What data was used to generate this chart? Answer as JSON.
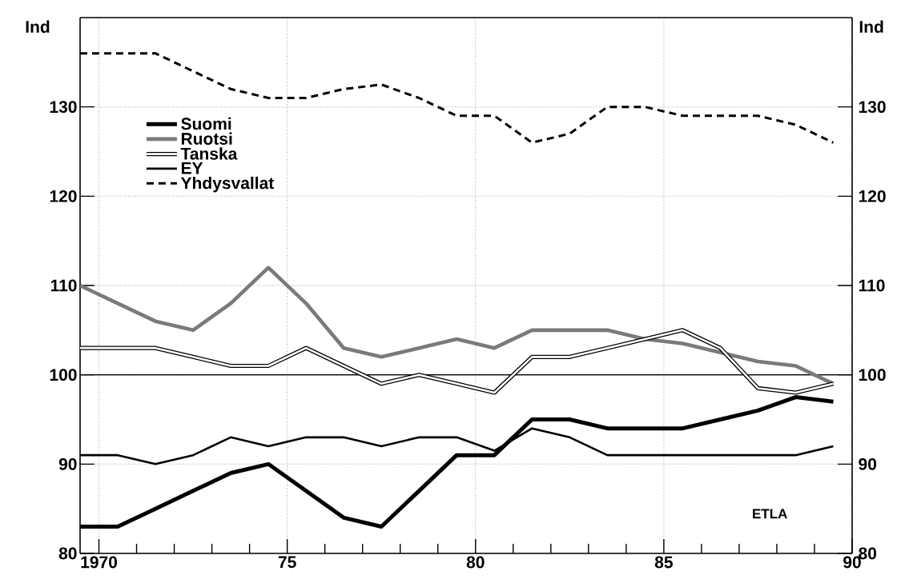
{
  "chart_data": {
    "type": "line",
    "xlabel": null,
    "ylabel": "Ind",
    "y2label": "Ind",
    "x": [
      1969.5,
      1970.5,
      1971.5,
      1972.5,
      1973.5,
      1974.5,
      1975.5,
      1976.5,
      1977.5,
      1978.5,
      1979.5,
      1980.5,
      1981.5,
      1982.5,
      1983.5,
      1984.5,
      1985.5,
      1986.5,
      1987.5,
      1988.5,
      1989.5
    ],
    "series": [
      {
        "name": "Suomi",
        "color": "#000000",
        "line_style": "solid",
        "values": [
          83,
          83,
          85,
          87,
          89,
          90,
          87,
          84,
          83,
          87,
          91,
          91,
          95,
          95,
          94,
          94,
          94,
          95,
          96,
          97.5,
          97
        ]
      },
      {
        "name": "Ruotsi",
        "color": "#7a7a7a",
        "line_style": "solid",
        "values": [
          110,
          108,
          106,
          105,
          108,
          112,
          108,
          103,
          102,
          103,
          104,
          103,
          105,
          105,
          105,
          104,
          103.5,
          102.5,
          101.5,
          101,
          99
        ]
      },
      {
        "name": "Tanska",
        "color": "#000000",
        "line_style": "solid",
        "values": [
          103,
          103,
          103,
          102,
          101,
          101,
          103,
          101,
          99,
          100,
          99,
          98,
          102,
          102,
          103,
          104,
          105,
          103,
          98.5,
          98,
          99
        ]
      },
      {
        "name": "EY",
        "color": "#000000",
        "line_style": "solid",
        "values": [
          91,
          91,
          90,
          91,
          93,
          92,
          93,
          93,
          92,
          93,
          93,
          91.5,
          94,
          93,
          91,
          91,
          91,
          91,
          91,
          91,
          92
        ]
      },
      {
        "name": "Yhdysvallat",
        "color": "#000000",
        "line_style": "dashed",
        "values": [
          136,
          136,
          136,
          134,
          132,
          131,
          131,
          132,
          132.5,
          131,
          129,
          129,
          126,
          127,
          130,
          130,
          129,
          129,
          129,
          128,
          126
        ]
      }
    ],
    "xlim": [
      1969.5,
      1990
    ],
    "xticks": [
      {
        "value": 1970,
        "label": "1970"
      },
      {
        "value": 1971,
        "label": null
      },
      {
        "value": 1972,
        "label": null
      },
      {
        "value": 1973,
        "label": null
      },
      {
        "value": 1974,
        "label": null
      },
      {
        "value": 1975,
        "label": "75"
      },
      {
        "value": 1976,
        "label": null
      },
      {
        "value": 1977,
        "label": null
      },
      {
        "value": 1978,
        "label": null
      },
      {
        "value": 1979,
        "label": null
      },
      {
        "value": 1980,
        "label": "80"
      },
      {
        "value": 1981,
        "label": null
      },
      {
        "value": 1982,
        "label": null
      },
      {
        "value": 1983,
        "label": null
      },
      {
        "value": 1984,
        "label": null
      },
      {
        "value": 1985,
        "label": "85"
      },
      {
        "value": 1986,
        "label": null
      },
      {
        "value": 1987,
        "label": null
      },
      {
        "value": 1988,
        "label": null
      },
      {
        "value": 1989,
        "label": null
      },
      {
        "value": 1990,
        "label": "90"
      }
    ],
    "ylim": [
      80,
      140
    ],
    "yticks": [
      80,
      90,
      100,
      110,
      120,
      130
    ],
    "y2lim": [
      80,
      140
    ],
    "y2ticks": [
      80,
      90,
      100,
      110,
      120,
      130
    ],
    "ref_lines": [
      {
        "axis": "y",
        "value": 100,
        "label": null,
        "color": "#000000",
        "line_style": "solid"
      }
    ],
    "annotations": [
      "ETLA"
    ],
    "grid": true,
    "legend": "top left",
    "marker": "none"
  }
}
